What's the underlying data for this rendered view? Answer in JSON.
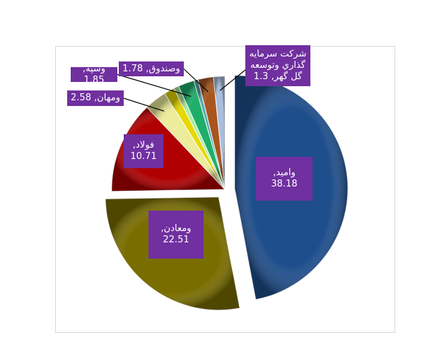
{
  "chart_data": {
    "type": "pie",
    "values": [
      38.18,
      22.51,
      10.71,
      2.58,
      1.2,
      0.6,
      1.85,
      0.5,
      1.78,
      1.3
    ],
    "value_labels": [
      "وامید, 38.18",
      "ومعادن, 22.51",
      "فولاد, 10.71",
      "ومهان, 2.58",
      null,
      null,
      "وسپه, 1.85",
      null,
      "وصندوق, 1.78",
      "شرکت سرمایه گذاري وتوسعه گل گهر, 1.3"
    ],
    "colors": [
      "#1f4e8c",
      "#7a6d00",
      "#b00000",
      "#ecec9a",
      "#e6d800",
      "#a8eca0",
      "#1fae6a",
      "#5aaab0",
      "#a8561e",
      "#a9bede"
    ]
  }
}
